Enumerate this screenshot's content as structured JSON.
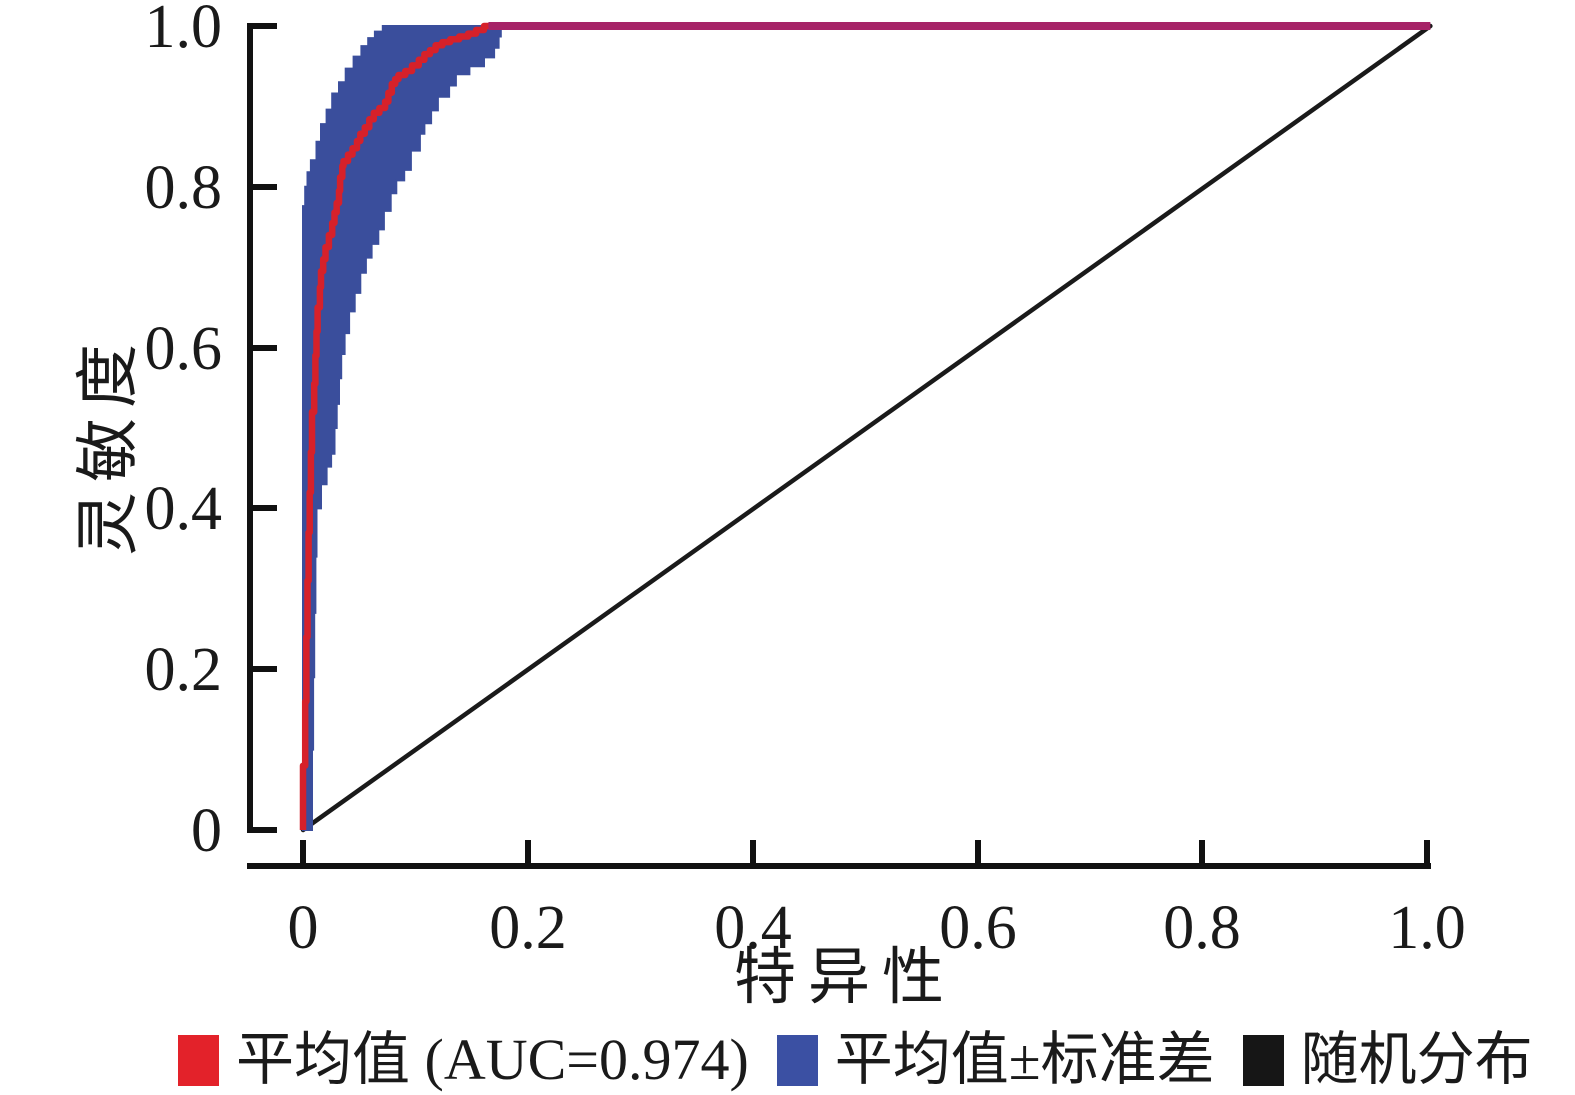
{
  "chart_data": {
    "type": "line",
    "title": "",
    "xlabel": "特异性",
    "ylabel": "灵敏度",
    "xlim": [
      0,
      1.0
    ],
    "ylim": [
      0,
      1.0
    ],
    "grid": false,
    "legend_position": "bottom",
    "auc": "0.974",
    "xticks": {
      "values": [
        0,
        0.2,
        0.4,
        0.6,
        0.8,
        1.0
      ],
      "labels": [
        "0",
        "0.2",
        "0.4",
        "0.6",
        "0.8",
        "1.0"
      ]
    },
    "yticks": {
      "values": [
        0,
        0.2,
        0.4,
        0.6,
        0.8,
        1.0
      ],
      "labels": [
        "0",
        "0.2",
        "0.4",
        "0.6",
        "0.8",
        "1.0"
      ]
    },
    "series": [
      {
        "name": "平均值 (AUC=0.974)",
        "kind": "mean_roc_line",
        "color": "#D6212A",
        "plateau_color": "#A62367",
        "points": [
          [
            0,
            0
          ],
          [
            0.002,
            0.08
          ],
          [
            0.003,
            0.16
          ],
          [
            0.004,
            0.24
          ],
          [
            0.005,
            0.31
          ],
          [
            0.006,
            0.37
          ],
          [
            0.007,
            0.42
          ],
          [
            0.008,
            0.47
          ],
          [
            0.01,
            0.52
          ],
          [
            0.011,
            0.555
          ],
          [
            0.012,
            0.59
          ],
          [
            0.013,
            0.62
          ],
          [
            0.015,
            0.65
          ],
          [
            0.016,
            0.675
          ],
          [
            0.018,
            0.695
          ],
          [
            0.02,
            0.71
          ],
          [
            0.023,
            0.725
          ],
          [
            0.026,
            0.74
          ],
          [
            0.028,
            0.755
          ],
          [
            0.03,
            0.768
          ],
          [
            0.032,
            0.78
          ],
          [
            0.033,
            0.795
          ],
          [
            0.035,
            0.812
          ],
          [
            0.036,
            0.826
          ],
          [
            0.04,
            0.832
          ],
          [
            0.044,
            0.84
          ],
          [
            0.048,
            0.848
          ],
          [
            0.051,
            0.857
          ],
          [
            0.055,
            0.866
          ],
          [
            0.059,
            0.874
          ],
          [
            0.063,
            0.884
          ],
          [
            0.068,
            0.892
          ],
          [
            0.073,
            0.898
          ],
          [
            0.076,
            0.906
          ],
          [
            0.079,
            0.917
          ],
          [
            0.082,
            0.928
          ],
          [
            0.085,
            0.934
          ],
          [
            0.091,
            0.939
          ],
          [
            0.097,
            0.944
          ],
          [
            0.103,
            0.951
          ],
          [
            0.108,
            0.958
          ],
          [
            0.113,
            0.965
          ],
          [
            0.118,
            0.97
          ],
          [
            0.124,
            0.976
          ],
          [
            0.131,
            0.98
          ],
          [
            0.139,
            0.9835
          ],
          [
            0.147,
            0.987
          ],
          [
            0.154,
            0.9905
          ],
          [
            0.161,
            0.995
          ],
          [
            0.168,
            1.0
          ],
          [
            1.0,
            1.0
          ]
        ]
      },
      {
        "name": "平均值±标准差",
        "kind": "std_band",
        "color": "#3A4E9C",
        "upper": [
          [
            0,
            0.75
          ],
          [
            0.002,
            0.776
          ],
          [
            0.004,
            0.8
          ],
          [
            0.007,
            0.818
          ],
          [
            0.012,
            0.833
          ],
          [
            0.016,
            0.856
          ],
          [
            0.021,
            0.878
          ],
          [
            0.026,
            0.896
          ],
          [
            0.032,
            0.916
          ],
          [
            0.038,
            0.93
          ],
          [
            0.045,
            0.947
          ],
          [
            0.052,
            0.962
          ],
          [
            0.058,
            0.975
          ],
          [
            0.064,
            0.985
          ],
          [
            0.071,
            0.993
          ],
          [
            0.078,
            1.0
          ]
        ],
        "lower": [
          [
            0.007,
            0
          ],
          [
            0.008,
            0.1
          ],
          [
            0.009,
            0.19
          ],
          [
            0.01,
            0.27
          ],
          [
            0.011,
            0.34
          ],
          [
            0.012,
            0.4
          ],
          [
            0.016,
            0.43
          ],
          [
            0.021,
            0.452
          ],
          [
            0.025,
            0.468
          ],
          [
            0.028,
            0.5
          ],
          [
            0.03,
            0.53
          ],
          [
            0.032,
            0.562
          ],
          [
            0.034,
            0.592
          ],
          [
            0.037,
            0.618
          ],
          [
            0.041,
            0.645
          ],
          [
            0.046,
            0.668
          ],
          [
            0.051,
            0.693
          ],
          [
            0.056,
            0.712
          ],
          [
            0.061,
            0.729
          ],
          [
            0.067,
            0.747
          ],
          [
            0.072,
            0.77
          ],
          [
            0.078,
            0.792
          ],
          [
            0.083,
            0.808
          ],
          [
            0.09,
            0.821
          ],
          [
            0.096,
            0.845
          ],
          [
            0.104,
            0.866
          ],
          [
            0.108,
            0.879
          ],
          [
            0.114,
            0.895
          ],
          [
            0.12,
            0.912
          ],
          [
            0.13,
            0.926
          ],
          [
            0.136,
            0.94
          ],
          [
            0.148,
            0.95
          ],
          [
            0.161,
            0.961
          ],
          [
            0.17,
            0.973
          ],
          [
            0.174,
            0.987
          ],
          [
            0.176,
            1.0
          ]
        ]
      },
      {
        "name": "随机分布",
        "kind": "diagonal_reference",
        "color": "#1A1A1A",
        "points": [
          [
            0,
            0
          ],
          [
            1,
            1
          ]
        ]
      }
    ],
    "legend": [
      {
        "label": "平均值 (AUC=0.974)",
        "color": "#E3222A"
      },
      {
        "label": "平均值±标准差",
        "color": "#3B50A3"
      },
      {
        "label": "随机分布",
        "color": "#161616"
      }
    ]
  }
}
